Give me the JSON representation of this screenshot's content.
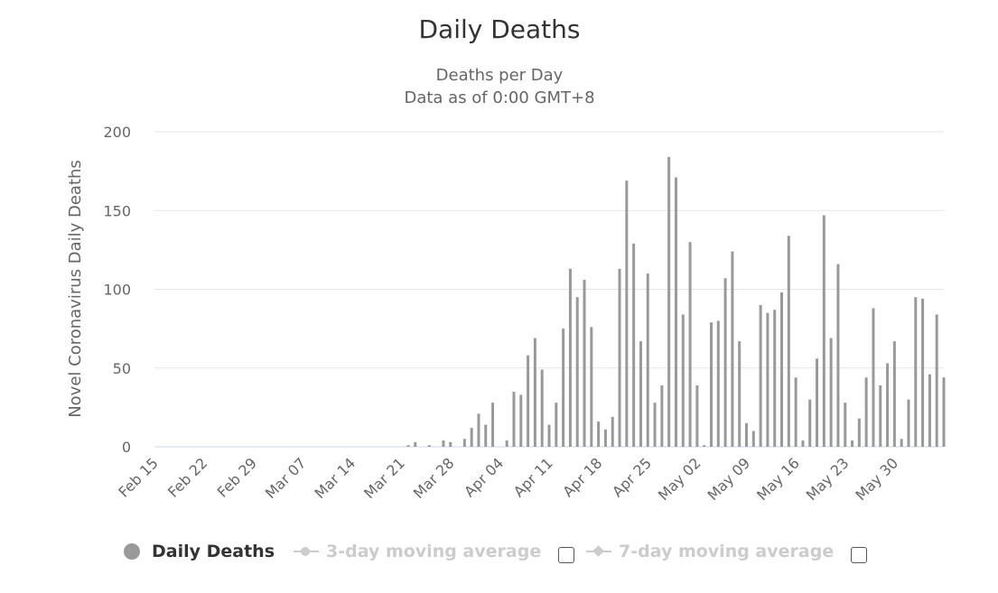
{
  "chart_data": {
    "type": "bar",
    "title": "Daily Deaths",
    "subtitle_line1": "Deaths per Day",
    "subtitle_line2": "Data as of 0:00 GMT+8",
    "ylabel": "Novel Coronavirus Daily Deaths",
    "xlabel": "",
    "ylim": [
      0,
      200
    ],
    "yticks": [
      0,
      50,
      100,
      150,
      200
    ],
    "xtick_labels": [
      "Feb 15",
      "Feb 22",
      "Feb 29",
      "Mar 07",
      "Mar 14",
      "Mar 21",
      "Mar 28",
      "Apr 04",
      "Apr 11",
      "Apr 18",
      "Apr 25",
      "May 02",
      "May 09",
      "May 16",
      "May 23",
      "May 30"
    ],
    "first_date": "Feb 15",
    "last_date": "May 30",
    "series": [
      {
        "name": "Daily Deaths",
        "color": "#999999",
        "values": [
          0,
          0,
          0,
          0,
          0,
          0,
          0,
          0,
          0,
          0,
          0,
          0,
          0,
          0,
          0,
          0,
          0,
          0,
          0,
          0,
          0,
          0,
          0,
          0,
          0,
          0,
          0,
          0,
          0,
          0,
          0,
          0,
          0,
          0,
          0,
          0,
          1,
          3,
          0,
          1,
          0,
          4,
          3,
          0,
          5,
          12,
          21,
          14,
          28,
          0,
          4,
          35,
          33,
          58,
          69,
          49,
          14,
          28,
          75,
          113,
          95,
          106,
          76,
          16,
          11,
          19,
          113,
          169,
          129,
          67,
          110,
          28,
          39,
          184,
          171,
          84,
          130,
          39,
          1,
          79,
          80,
          107,
          124,
          67,
          15,
          10,
          90,
          85,
          87,
          98,
          134,
          44,
          4,
          30,
          56,
          147,
          69,
          116,
          28,
          4,
          18,
          44,
          88,
          39,
          53,
          67,
          5,
          30,
          95,
          94,
          46,
          84,
          44
        ]
      }
    ],
    "legend": [
      {
        "label": "Daily Deaths",
        "active": true
      },
      {
        "label": "3-day moving average",
        "active": false
      },
      {
        "label": "7-day moving average",
        "active": false
      }
    ],
    "colors": {
      "bar": "#999999",
      "grid": "#e6e6e6",
      "baseline": "#ccd6eb",
      "text": "#333333",
      "axis_text": "#666666",
      "inactive": "#cccccc"
    }
  }
}
